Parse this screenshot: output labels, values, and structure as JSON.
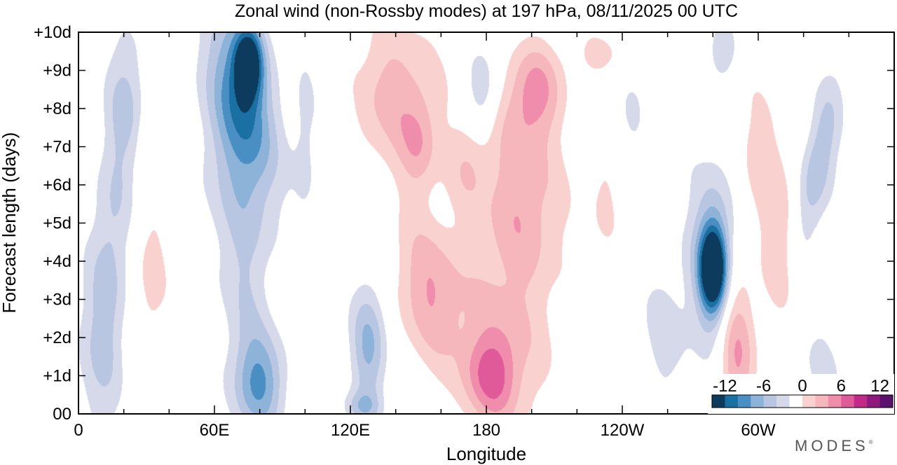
{
  "chart_data": {
    "type": "heatmap",
    "title": "Zonal wind (non-Rossby modes) at 197 hPa,  08/11/2025  00 UTC",
    "xlabel": "Longitude",
    "ylabel": "Forecast length (days)",
    "x_ticks": [
      "0",
      "60E",
      "120E",
      "180",
      "120W",
      "60W"
    ],
    "x_tick_values": [
      0,
      60,
      120,
      180,
      240,
      300
    ],
    "x_range": [
      0,
      360
    ],
    "y_ticks": [
      "00",
      "+1d",
      "+2d",
      "+3d",
      "+4d",
      "+5d",
      "+6d",
      "+7d",
      "+8d",
      "+9d",
      "+10d"
    ],
    "y_range": [
      0,
      10
    ],
    "colorbar": {
      "labels": [
        "-12",
        "-6",
        "0",
        "6",
        "12"
      ],
      "label_values": [
        -12,
        -6,
        0,
        6,
        12
      ],
      "levels": [
        -14,
        -12,
        -10,
        -8,
        -6,
        -4,
        -2,
        2,
        4,
        6,
        8,
        10,
        12,
        14
      ],
      "colors": [
        "#0d3b5e",
        "#1a6fa3",
        "#4a8fc4",
        "#8db3d9",
        "#b9c6e2",
        "#d6d9ea",
        "#ffffff",
        "#f9d2cf",
        "#f5b7bb",
        "#f08dac",
        "#e05a9a",
        "#c22a87",
        "#8e1a7e",
        "#5c116e"
      ]
    },
    "features": [
      {
        "lon": 15,
        "day": 5.0,
        "value": -4.0,
        "wlon": 9,
        "wday": 4.8,
        "tilt": 1.0
      },
      {
        "lon": 8,
        "day": 1.8,
        "value": -2.5,
        "wlon": 12,
        "wday": 2.5,
        "tilt": 0
      },
      {
        "lon": 22,
        "day": 8.3,
        "value": -2.5,
        "wlon": 8,
        "wday": 1.6,
        "tilt": 0
      },
      {
        "lon": 32,
        "day": 3.6,
        "value": 3.0,
        "wlon": 8,
        "wday": 2.4,
        "tilt": 0
      },
      {
        "lon": 30,
        "day": 7.2,
        "value": 2.4,
        "wlon": 3,
        "wday": 0.6,
        "tilt": 0
      },
      {
        "lon": 72,
        "day": 8.2,
        "value": -8.5,
        "wlon": 13,
        "wday": 2.4,
        "tilt": -2.5
      },
      {
        "lon": 75,
        "day": 9.2,
        "value": -12.0,
        "wlon": 6,
        "wday": 0.9,
        "tilt": 0
      },
      {
        "lon": 68,
        "day": 6.3,
        "value": -3.0,
        "wlon": 18,
        "wday": 3.5,
        "tilt": 0
      },
      {
        "lon": 74,
        "day": 3.0,
        "value": -2.5,
        "wlon": 10,
        "wday": 3.0,
        "tilt": 0
      },
      {
        "lon": 80,
        "day": 0.8,
        "value": -7.5,
        "wlon": 11,
        "wday": 1.3,
        "tilt": 0
      },
      {
        "lon": 100,
        "day": 7.2,
        "value": -2.5,
        "wlon": 6,
        "wday": 2.8,
        "tilt": 0
      },
      {
        "lon": 114,
        "day": 7.6,
        "value": -2.3,
        "wlon": 6,
        "wday": 1.4,
        "tilt": 0
      },
      {
        "lon": 128,
        "day": 1.8,
        "value": -6.5,
        "wlon": 8,
        "wday": 1.7,
        "tilt": 0
      },
      {
        "lon": 125,
        "day": 0.2,
        "value": -4.0,
        "wlon": 8,
        "wday": 0.4,
        "tilt": 0
      },
      {
        "lon": 140,
        "day": 8.3,
        "value": 5.0,
        "wlon": 20,
        "wday": 2.0,
        "tilt": 0
      },
      {
        "lon": 150,
        "day": 7.0,
        "value": 3.5,
        "wlon": 8,
        "wday": 1.2,
        "tilt": 0
      },
      {
        "lon": 155,
        "day": 3.2,
        "value": 5.8,
        "wlon": 15,
        "wday": 1.9,
        "tilt": -1.8
      },
      {
        "lon": 190,
        "day": 3.0,
        "value": 4.0,
        "wlon": 22,
        "wday": 3.5,
        "tilt": 0
      },
      {
        "lon": 182,
        "day": 1.0,
        "value": 6.8,
        "wlon": 12,
        "wday": 1.2,
        "tilt": 0
      },
      {
        "lon": 198,
        "day": 5.5,
        "value": 3.0,
        "wlon": 18,
        "wday": 1.6,
        "tilt": 0
      },
      {
        "lon": 172,
        "day": 6.6,
        "value": 3.0,
        "wlon": 9,
        "wday": 1.1,
        "tilt": 0
      },
      {
        "lon": 178,
        "day": 8.5,
        "value": -4.0,
        "wlon": 7,
        "wday": 1.2,
        "tilt": 0
      },
      {
        "lon": 202,
        "day": 8.6,
        "value": 5.2,
        "wlon": 12,
        "wday": 1.2,
        "tilt": 0
      },
      {
        "lon": 196,
        "day": 7.5,
        "value": 3.0,
        "wlon": 14,
        "wday": 1.5,
        "tilt": 0
      },
      {
        "lon": 230,
        "day": 9.4,
        "value": 2.5,
        "wlon": 12,
        "wday": 0.7,
        "tilt": 0
      },
      {
        "lon": 232,
        "day": 5.5,
        "value": 2.2,
        "wlon": 7,
        "wday": 1.8,
        "tilt": 0
      },
      {
        "lon": 257,
        "day": 2.0,
        "value": -2.5,
        "wlon": 12,
        "wday": 2.0,
        "tilt": 0
      },
      {
        "lon": 280,
        "day": 3.8,
        "value": -12.5,
        "wlon": 5.5,
        "wday": 1.0,
        "tilt": 0
      },
      {
        "lon": 280,
        "day": 4.0,
        "value": -6.5,
        "wlon": 8,
        "wday": 1.8,
        "tilt": 0
      },
      {
        "lon": 278,
        "day": 4.2,
        "value": -2.5,
        "wlon": 14,
        "wday": 3.2,
        "tilt": 0
      },
      {
        "lon": 290,
        "day": 1.6,
        "value": 6.6,
        "wlon": 8,
        "wday": 2.2,
        "tilt": 0
      },
      {
        "lon": 300,
        "day": 7.0,
        "value": 2.6,
        "wlon": 10,
        "wday": 2.0,
        "tilt": 0
      },
      {
        "lon": 310,
        "day": 4.5,
        "value": 3.5,
        "wlon": 10,
        "wday": 2.5,
        "tilt": 0
      },
      {
        "lon": 326,
        "day": 6.5,
        "value": -5.8,
        "wlon": 8,
        "wday": 2.3,
        "tilt": 3.0
      },
      {
        "lon": 285,
        "day": 9.6,
        "value": -4.0,
        "wlon": 6,
        "wday": 0.7,
        "tilt": 0
      },
      {
        "lon": 350,
        "day": 9.0,
        "value": 2.2,
        "wlon": 6,
        "wday": 1.2,
        "tilt": 0
      },
      {
        "lon": 330,
        "day": 1.5,
        "value": -2.2,
        "wlon": 16,
        "wday": 1.8,
        "tilt": 0
      },
      {
        "lon": 245,
        "day": 8.0,
        "value": -2.2,
        "wlon": 6,
        "wday": 1.2,
        "tilt": 0
      }
    ]
  },
  "branding": {
    "logo_text": "MODES"
  }
}
